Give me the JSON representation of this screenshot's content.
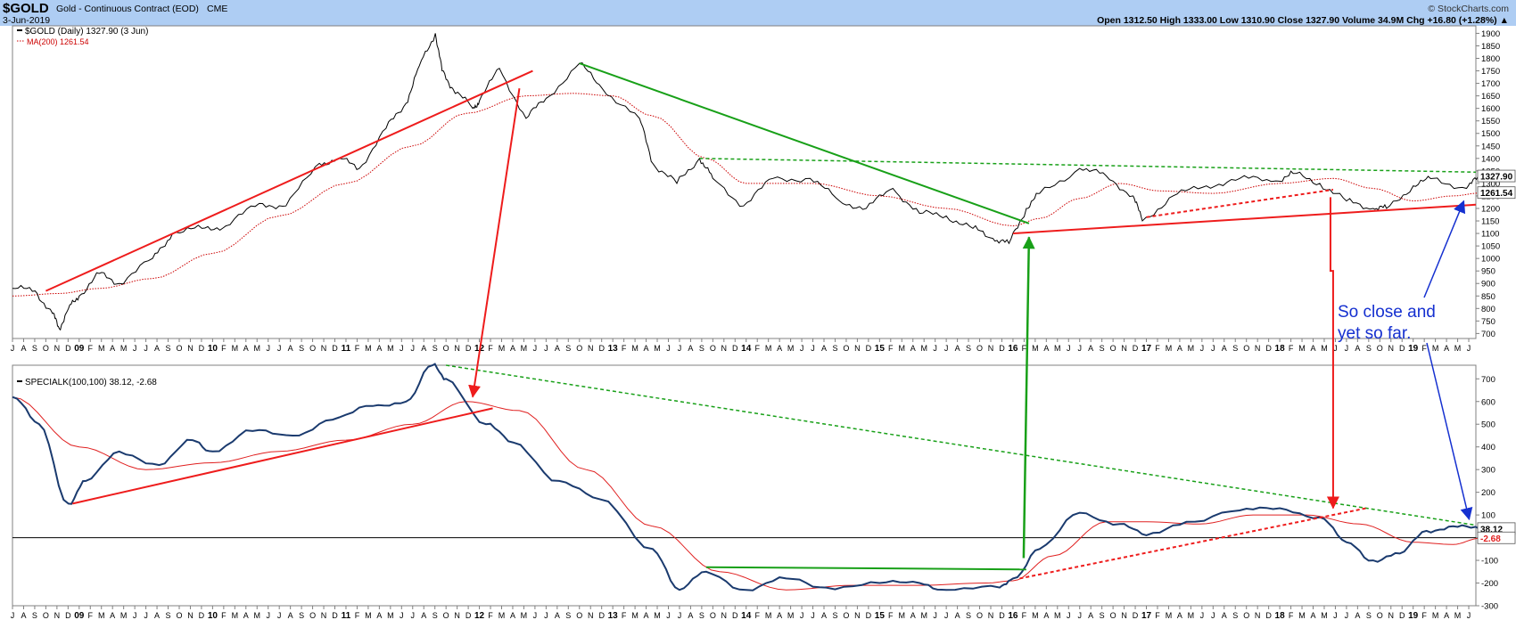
{
  "header": {
    "symbol": "$GOLD",
    "description": "Gold - Continuous Contract (EOD)",
    "exchange": "CME",
    "date": "3-Jun-2019",
    "watermark": "© StockCharts.com",
    "stats": "Open 1312.50  High 1333.00  Low 1310.90  Close 1327.90  Volume 34.9M  Chg +16.80 (+1.28%) ▲"
  },
  "colors": {
    "band": "#aecdf3",
    "price": "#000000",
    "ma": "#cc0000",
    "special": "#1a3a6e",
    "signal": "#e02020",
    "trend_red": "#ee1c1c",
    "trend_green": "#18a018",
    "arrow_blue": "#1530d0",
    "zero": "#000000"
  },
  "chart_data": [
    {
      "type": "line",
      "legend": [
        "$GOLD (Daily) 1327.90 (3 Jun)",
        "MA(200) 1261.54"
      ],
      "price_label": "1327.90",
      "ma_label": "1261.54",
      "ylim": [
        680,
        1930
      ],
      "y_ticks": [
        700,
        750,
        800,
        850,
        900,
        950,
        1000,
        1050,
        1100,
        1150,
        1200,
        1250,
        1300,
        1350,
        1400,
        1450,
        1500,
        1550,
        1600,
        1650,
        1700,
        1750,
        1800,
        1850,
        1900
      ],
      "series": [
        {
          "name": "$GOLD",
          "x": [
            2008.5,
            2008.67,
            2008.8,
            2008.85,
            2008.92,
            2009.0,
            2009.15,
            2009.3,
            2009.55,
            2009.7,
            2009.92,
            2010.1,
            2010.35,
            2010.55,
            2010.8,
            2010.95,
            2011.1,
            2011.3,
            2011.45,
            2011.55,
            2011.67,
            2011.72,
            2011.8,
            2011.95,
            2012.0,
            2012.15,
            2012.35,
            2012.5,
            2012.75,
            2012.92,
            2013.2,
            2013.3,
            2013.48,
            2013.65,
            2013.75,
            2013.98,
            2014.2,
            2014.48,
            2014.7,
            2014.9,
            2015.1,
            2015.3,
            2015.5,
            2015.7,
            2015.85,
            2015.97,
            2016.1,
            2016.2,
            2016.5,
            2016.7,
            2016.9,
            2016.97,
            2017.2,
            2017.45,
            2017.7,
            2017.97,
            2018.1,
            2018.3,
            2018.5,
            2018.7,
            2018.8,
            2019.0,
            2019.15,
            2019.4,
            2019.5
          ],
          "values": [
            880,
            870,
            780,
            720,
            800,
            850,
            940,
            900,
            1000,
            1100,
            1120,
            1130,
            1220,
            1210,
            1380,
            1400,
            1360,
            1520,
            1620,
            1770,
            1900,
            1750,
            1680,
            1600,
            1630,
            1760,
            1560,
            1640,
            1780,
            1680,
            1560,
            1380,
            1300,
            1400,
            1320,
            1210,
            1320,
            1320,
            1230,
            1200,
            1280,
            1180,
            1170,
            1120,
            1080,
            1060,
            1200,
            1260,
            1360,
            1330,
            1250,
            1150,
            1250,
            1290,
            1320,
            1310,
            1340,
            1300,
            1230,
            1200,
            1200,
            1290,
            1320,
            1280,
            1327.9
          ]
        },
        {
          "name": "MA(200)",
          "x": [
            2008.5,
            2008.85,
            2009.15,
            2009.55,
            2010.0,
            2010.5,
            2011.0,
            2011.5,
            2011.9,
            2012.35,
            2012.7,
            2013.0,
            2013.3,
            2013.7,
            2014.0,
            2014.5,
            2015.0,
            2015.5,
            2016.0,
            2016.2,
            2016.5,
            2016.8,
            2017.1,
            2017.5,
            2018.0,
            2018.4,
            2018.7,
            2019.0,
            2019.3,
            2019.5
          ],
          "values": [
            850,
            860,
            880,
            920,
            1020,
            1170,
            1300,
            1450,
            1580,
            1650,
            1660,
            1650,
            1570,
            1400,
            1300,
            1300,
            1250,
            1200,
            1130,
            1160,
            1240,
            1300,
            1270,
            1260,
            1300,
            1320,
            1280,
            1230,
            1250,
            1261.54
          ]
        }
      ]
    },
    {
      "type": "line",
      "legend": [
        "SPECIALK(100,100) 38.12, -2.68"
      ],
      "k_label": "38.12",
      "signal_label": "-2.68",
      "ylim": [
        -300,
        760
      ],
      "y_ticks": [
        -300,
        -200,
        -100,
        0,
        100,
        200,
        300,
        400,
        500,
        600,
        700
      ],
      "annotation": "So close and yet so far.",
      "series": [
        {
          "name": "SPECIALK",
          "x": [
            2008.5,
            2008.7,
            2008.92,
            2009.05,
            2009.3,
            2009.6,
            2009.85,
            2010.0,
            2010.3,
            2010.6,
            2010.9,
            2011.2,
            2011.45,
            2011.65,
            2011.75,
            2012.05,
            2012.25,
            2012.6,
            2012.9,
            2013.3,
            2013.5,
            2013.7,
            2014.0,
            2014.3,
            2014.6,
            2015.0,
            2015.3,
            2015.5,
            2015.9,
            2016.0,
            2016.2,
            2016.5,
            2016.8,
            2017.0,
            2017.3,
            2017.7,
            2018.0,
            2018.3,
            2018.5,
            2018.7,
            2018.9,
            2019.1,
            2019.3,
            2019.5
          ],
          "values": [
            620,
            500,
            150,
            250,
            380,
            320,
            430,
            380,
            470,
            450,
            520,
            580,
            600,
            760,
            700,
            500,
            420,
            250,
            170,
            -50,
            -230,
            -150,
            -230,
            -180,
            -220,
            -200,
            -200,
            -230,
            -220,
            -180,
            -50,
            110,
            60,
            10,
            70,
            120,
            130,
            90,
            -20,
            -100,
            -70,
            30,
            50,
            38.12
          ]
        },
        {
          "name": "Signal",
          "x": [
            2008.5,
            2009.0,
            2009.5,
            2010.0,
            2010.5,
            2011.0,
            2011.5,
            2011.9,
            2012.3,
            2012.8,
            2013.3,
            2013.8,
            2014.3,
            2014.8,
            2015.3,
            2015.8,
            2016.0,
            2016.3,
            2016.7,
            2017.0,
            2017.4,
            2017.8,
            2018.2,
            2018.6,
            2019.0,
            2019.3,
            2019.5
          ],
          "values": [
            620,
            400,
            300,
            330,
            380,
            430,
            500,
            600,
            560,
            300,
            50,
            -150,
            -230,
            -210,
            -210,
            -200,
            -190,
            -80,
            70,
            70,
            60,
            100,
            100,
            60,
            -20,
            -30,
            -2.68
          ]
        }
      ]
    }
  ],
  "x_axis": {
    "year_labels": [
      {
        "t": 2009.0,
        "label": "09"
      },
      {
        "t": 2010.0,
        "label": "10"
      },
      {
        "t": 2011.0,
        "label": "11"
      },
      {
        "t": 2012.0,
        "label": "12"
      },
      {
        "t": 2013.0,
        "label": "13"
      },
      {
        "t": 2014.0,
        "label": "14"
      },
      {
        "t": 2015.0,
        "label": "15"
      },
      {
        "t": 2016.0,
        "label": "16"
      },
      {
        "t": 2017.0,
        "label": "17"
      },
      {
        "t": 2018.0,
        "label": "18"
      },
      {
        "t": 2019.0,
        "label": "19"
      }
    ],
    "months": [
      "J",
      "F",
      "M",
      "A",
      "M",
      "J",
      "J",
      "A",
      "S",
      "O",
      "N",
      "D"
    ],
    "start": 2008.5,
    "end": 2019.47
  },
  "annotations": {
    "price_trendlines": [
      {
        "kind": "red-solid",
        "from": [
          2008.75,
          870
        ],
        "to": [
          2012.4,
          1750
        ]
      },
      {
        "kind": "green-solid",
        "from": [
          2012.75,
          1780
        ],
        "to": [
          2016.12,
          1140
        ]
      },
      {
        "kind": "green-dotted",
        "from": [
          2013.65,
          1400
        ],
        "to": [
          2019.47,
          1345
        ]
      },
      {
        "kind": "red-solid",
        "from": [
          2016.0,
          1100
        ],
        "to": [
          2019.47,
          1215
        ]
      },
      {
        "kind": "red-dotted",
        "from": [
          2017.0,
          1165
        ],
        "to": [
          2018.4,
          1275
        ]
      }
    ],
    "indicator_trendlines": [
      {
        "kind": "red-solid",
        "from": [
          2008.95,
          150
        ],
        "to": [
          2012.1,
          570
        ]
      },
      {
        "kind": "green-dotted",
        "from": [
          2011.75,
          760
        ],
        "to": [
          2019.47,
          55
        ]
      },
      {
        "kind": "green-solid",
        "from": [
          2013.7,
          -130
        ],
        "to": [
          2016.1,
          -140
        ]
      },
      {
        "kind": "red-dotted",
        "from": [
          2016.05,
          -180
        ],
        "to": [
          2018.65,
          130
        ]
      }
    ]
  }
}
